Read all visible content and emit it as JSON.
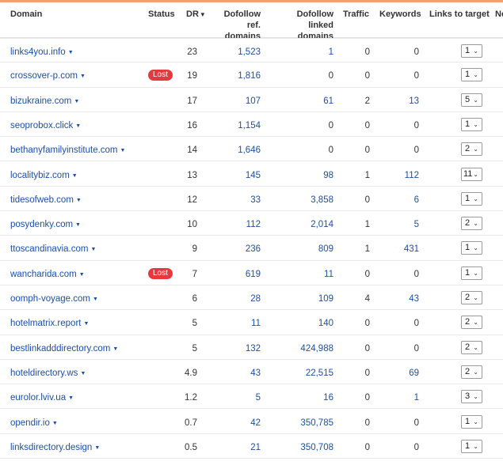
{
  "columns": {
    "domain": "Domain",
    "status": "Status",
    "dr": "DR",
    "dr_sort_icon": "sort-down-arrow",
    "dofollow_ref_domains": "Dofollow ref. domains",
    "dofollow_linked_domains": "Dofollow linked domains",
    "traffic": "Traffic",
    "keywords": "Keywords",
    "links_to_target": "Links to target",
    "next_column_truncated": "Ne"
  },
  "rows": [
    {
      "domain": "links4you.info",
      "status": "",
      "dr": "23",
      "ref": "1,523",
      "linked": "1",
      "traffic": "0",
      "keywords": "0",
      "links": "1"
    },
    {
      "domain": "crossover-p.com",
      "status": "Lost",
      "dr": "19",
      "ref": "1,816",
      "linked": "0",
      "traffic": "0",
      "keywords": "0",
      "links": "1"
    },
    {
      "domain": "bizukraine.com",
      "status": "",
      "dr": "17",
      "ref": "107",
      "linked": "61",
      "traffic": "2",
      "keywords": "13",
      "links": "5"
    },
    {
      "domain": "seoprobox.click",
      "status": "",
      "dr": "16",
      "ref": "1,154",
      "linked": "0",
      "traffic": "0",
      "keywords": "0",
      "links": "1"
    },
    {
      "domain": "bethanyfamilyinstitute.com",
      "status": "",
      "dr": "14",
      "ref": "1,646",
      "linked": "0",
      "traffic": "0",
      "keywords": "0",
      "links": "2"
    },
    {
      "domain": "localitybiz.com",
      "status": "",
      "dr": "13",
      "ref": "145",
      "linked": "98",
      "traffic": "1",
      "keywords": "112",
      "links": "11"
    },
    {
      "domain": "tidesofweb.com",
      "status": "",
      "dr": "12",
      "ref": "33",
      "linked": "3,858",
      "traffic": "0",
      "keywords": "6",
      "links": "1"
    },
    {
      "domain": "posydenky.com",
      "status": "",
      "dr": "10",
      "ref": "112",
      "linked": "2,014",
      "traffic": "1",
      "keywords": "5",
      "links": "2"
    },
    {
      "domain": "ttoscandinavia.com",
      "status": "",
      "dr": "9",
      "ref": "236",
      "linked": "809",
      "traffic": "1",
      "keywords": "431",
      "links": "1"
    },
    {
      "domain": "wancharida.com",
      "status": "Lost",
      "dr": "7",
      "ref": "619",
      "linked": "11",
      "traffic": "0",
      "keywords": "0",
      "links": "1"
    },
    {
      "domain": "oomph-voyage.com",
      "status": "",
      "dr": "6",
      "ref": "28",
      "linked": "109",
      "traffic": "4",
      "keywords": "43",
      "links": "2"
    },
    {
      "domain": "hotelmatrix.report",
      "status": "",
      "dr": "5",
      "ref": "11",
      "linked": "140",
      "traffic": "0",
      "keywords": "0",
      "links": "2"
    },
    {
      "domain": "bestlinkadddirectory.com",
      "status": "",
      "dr": "5",
      "ref": "132",
      "linked": "424,988",
      "traffic": "0",
      "keywords": "0",
      "links": "2"
    },
    {
      "domain": "hoteldirectory.ws",
      "status": "",
      "dr": "4.9",
      "ref": "43",
      "linked": "22,515",
      "traffic": "0",
      "keywords": "69",
      "links": "2"
    },
    {
      "domain": "eurolor.lviv.ua",
      "status": "",
      "dr": "1.2",
      "ref": "5",
      "linked": "16",
      "traffic": "0",
      "keywords": "1",
      "links": "3"
    },
    {
      "domain": "opendir.io",
      "status": "",
      "dr": "0.7",
      "ref": "42",
      "linked": "350,785",
      "traffic": "0",
      "keywords": "0",
      "links": "1"
    },
    {
      "domain": "linksdirectory.design",
      "status": "",
      "dr": "0.5",
      "ref": "21",
      "linked": "350,708",
      "traffic": "0",
      "keywords": "0",
      "links": "1"
    }
  ],
  "colors": {
    "link": "#1b4fa6",
    "lost_badge": "#e5393d",
    "header_accent": "#f0a070"
  }
}
